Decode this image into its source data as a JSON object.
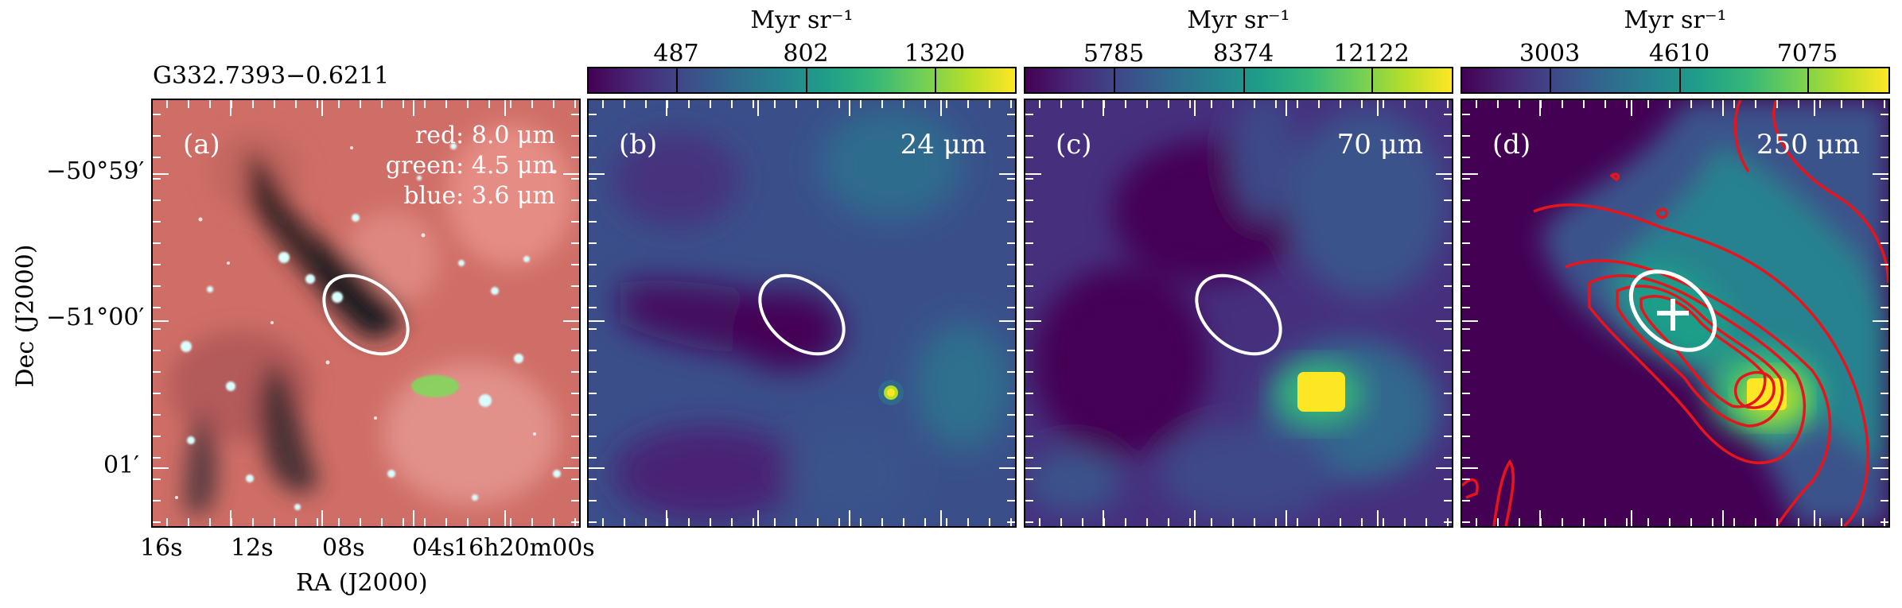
{
  "source_name": "G332.7393−0.6211",
  "axes": {
    "xlabel": "RA (J2000)",
    "ylabel": "Dec (J2000)",
    "xticks": [
      "16s",
      "12s",
      "08s",
      "04s",
      "16h20m00s"
    ],
    "yticks": [
      "−50°59′",
      "−51°00′",
      "01′"
    ]
  },
  "colorbar_unit": "Myr sr⁻¹",
  "panels": [
    {
      "tag": "(a)",
      "rgb_legend": [
        "red: 8.0 μm",
        "green: 4.5 μm",
        "blue: 3.6 μm"
      ],
      "colormap": "RGB composite"
    },
    {
      "tag": "(b)",
      "band": "24 μm",
      "colorbar_ticks": [
        "487",
        "802",
        "1320"
      ],
      "colormap": "viridis"
    },
    {
      "tag": "(c)",
      "band": "70 μm",
      "colorbar_ticks": [
        "5785",
        "8374",
        "12122"
      ],
      "colormap": "viridis"
    },
    {
      "tag": "(d)",
      "band": "250 μm",
      "colorbar_ticks": [
        "3003",
        "4610",
        "7075"
      ],
      "colormap": "viridis",
      "overlay": "red contours",
      "marker": "white cross"
    }
  ],
  "colors": {
    "ellipse": "#ffffff",
    "contour": "#e8141c",
    "viridis_low": "#440154",
    "viridis_high": "#fde725"
  }
}
